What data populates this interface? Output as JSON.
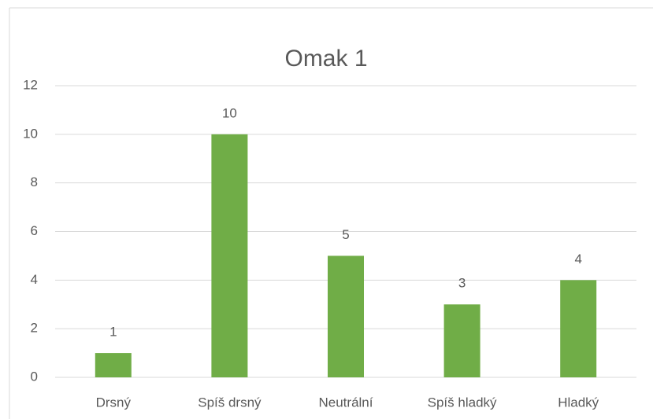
{
  "chart_data": {
    "type": "bar",
    "title": "Omak 1",
    "categories": [
      "Drsný",
      "Spíš drsný",
      "Neutrální",
      "Spíš hladký",
      "Hladký"
    ],
    "values": [
      1,
      10,
      5,
      3,
      4
    ],
    "color": "#70ad47",
    "ylim": [
      0,
      12
    ],
    "yticks": [
      0,
      2,
      4,
      6,
      8,
      10,
      12
    ],
    "grid": true,
    "data_labels": true
  }
}
